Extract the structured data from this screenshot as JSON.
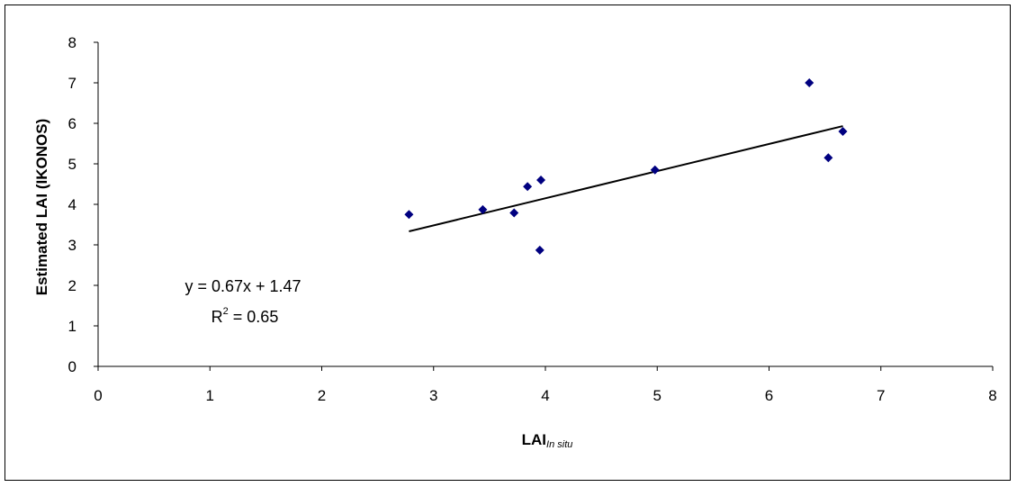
{
  "chart_data": {
    "type": "scatter",
    "xlabel_main": "LAI",
    "xlabel_sub": "In situ",
    "ylabel": "Estimated LAI (IKONOS)",
    "xlim": [
      0,
      8
    ],
    "ylim": [
      0,
      8
    ],
    "xticks": [
      0,
      1,
      2,
      3,
      4,
      5,
      6,
      7,
      8
    ],
    "yticks": [
      0,
      1,
      2,
      3,
      4,
      5,
      6,
      7,
      8
    ],
    "grid": false,
    "legend": "none",
    "marker_color": "#000080",
    "points": [
      {
        "x": 2.78,
        "y": 3.75
      },
      {
        "x": 3.44,
        "y": 3.87
      },
      {
        "x": 3.72,
        "y": 3.79
      },
      {
        "x": 3.84,
        "y": 4.44
      },
      {
        "x": 3.96,
        "y": 4.6
      },
      {
        "x": 3.95,
        "y": 2.87
      },
      {
        "x": 4.98,
        "y": 4.85
      },
      {
        "x": 6.36,
        "y": 7.0
      },
      {
        "x": 6.53,
        "y": 5.15
      },
      {
        "x": 6.66,
        "y": 5.8
      }
    ],
    "trendline": {
      "slope": 0.67,
      "intercept": 1.47,
      "x_start": 2.78,
      "x_end": 6.66
    },
    "annotation": {
      "equation": "y = 0.67x + 1.47",
      "r2_base": "R",
      "r2_exp": "2",
      "r2_value": " = 0.65"
    }
  }
}
